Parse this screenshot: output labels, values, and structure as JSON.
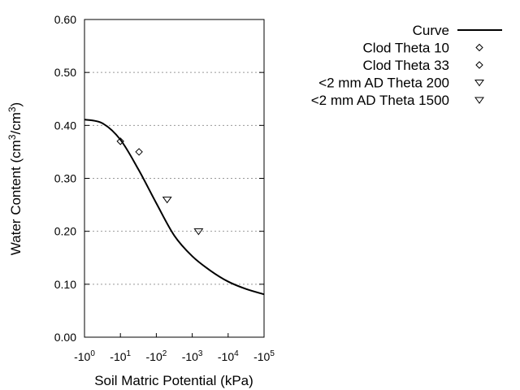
{
  "chart_data": {
    "type": "line",
    "title": "",
    "xlabel": "Soil Matric Potential (kPa)",
    "ylabel_main": "Water Content (cm",
    "ylabel_sup1": "3",
    "ylabel_mid": "/cm",
    "ylabel_sup2": "3",
    "ylabel_end": ")",
    "x_scale": "log (negative)",
    "xlim": [
      -1,
      -100000
    ],
    "ylim": [
      0,
      0.6
    ],
    "x_ticks": [
      {
        "base": "-10",
        "exp": "0",
        "value": -1
      },
      {
        "base": "-10",
        "exp": "1",
        "value": -10
      },
      {
        "base": "-10",
        "exp": "2",
        "value": -100
      },
      {
        "base": "-10",
        "exp": "3",
        "value": -1000
      },
      {
        "base": "-10",
        "exp": "4",
        "value": -10000
      },
      {
        "base": "-10",
        "exp": "5",
        "value": -100000
      }
    ],
    "y_ticks": [
      "0.00",
      "0.10",
      "0.20",
      "0.30",
      "0.40",
      "0.50",
      "0.60"
    ],
    "grid": "horizontal dotted",
    "legend_placement": "top-right outside",
    "series": [
      {
        "name": "Curve",
        "kind": "line",
        "color": "#000000",
        "x": [
          -1,
          -3.16,
          -10,
          -31.6,
          -100,
          -316,
          -1000,
          -3162,
          -10000,
          -31623,
          -100000
        ],
        "y": [
          0.411,
          0.404,
          0.373,
          0.317,
          0.253,
          0.192,
          0.153,
          0.126,
          0.105,
          0.091,
          0.081
        ]
      },
      {
        "name": "Clod Theta 10",
        "kind": "marker",
        "marker": "diamond",
        "x": [
          -10
        ],
        "y": [
          0.37
        ]
      },
      {
        "name": "Clod Theta 33",
        "kind": "marker",
        "marker": "diamond",
        "x": [
          -33
        ],
        "y": [
          0.35
        ]
      },
      {
        "name": "<2 mm AD Theta 200",
        "kind": "marker",
        "marker": "triangle-down",
        "x": [
          -200
        ],
        "y": [
          0.26
        ]
      },
      {
        "name": "<2 mm AD Theta 1500",
        "kind": "marker",
        "marker": "triangle-down",
        "x": [
          -1500
        ],
        "y": [
          0.2
        ]
      }
    ]
  }
}
